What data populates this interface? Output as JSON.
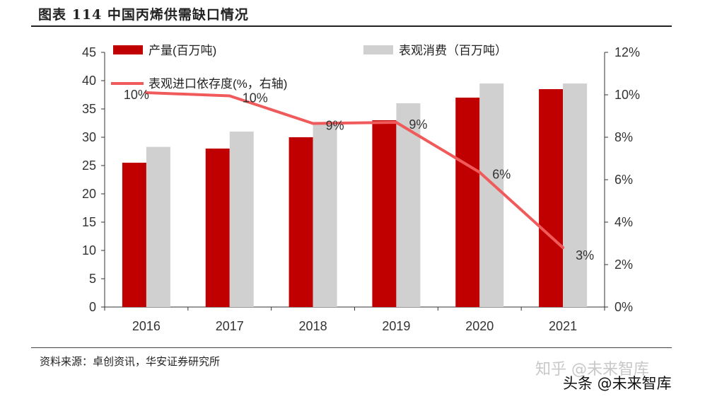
{
  "header": {
    "title": "图表 114  中国丙烯供需缺口情况"
  },
  "footer": {
    "source": "资料来源：卓创资讯，华安证券研究所"
  },
  "watermarks": {
    "zhihu": "知乎 @未来智库",
    "toutiao": "头条 @未来智库"
  },
  "colors": {
    "production": "#c00000",
    "consumption": "#d0d0d0",
    "dependence": "#f05a5a"
  },
  "chart_data": {
    "type": "bar",
    "categories": [
      "2016",
      "2017",
      "2018",
      "2019",
      "2020",
      "2021"
    ],
    "series": [
      {
        "name": "产量(百万吨)",
        "type": "bar",
        "axis": "left",
        "values": [
          25.5,
          28.0,
          30.0,
          33.0,
          37.0,
          38.5
        ]
      },
      {
        "name": "表观消费（百万吨）",
        "type": "bar",
        "axis": "left",
        "values": [
          28.3,
          31.0,
          32.5,
          36.0,
          39.5,
          39.5
        ]
      },
      {
        "name": "表观进口依存度(%，右轴)",
        "type": "line",
        "axis": "right",
        "values": [
          10.1,
          9.95,
          8.65,
          8.7,
          6.35,
          2.8
        ],
        "labels": [
          "10%",
          "10%",
          "9%",
          "9%",
          "6%",
          "3%"
        ]
      }
    ],
    "y_left": {
      "min": 0,
      "max": 45,
      "ticks": [
        "0",
        "5",
        "10",
        "15",
        "20",
        "25",
        "30",
        "35",
        "40",
        "45"
      ]
    },
    "y_right": {
      "min": 0,
      "max": 12,
      "ticks": [
        "0%",
        "2%",
        "4%",
        "6%",
        "8%",
        "10%",
        "12%"
      ]
    },
    "grid": false,
    "legend": "top"
  }
}
